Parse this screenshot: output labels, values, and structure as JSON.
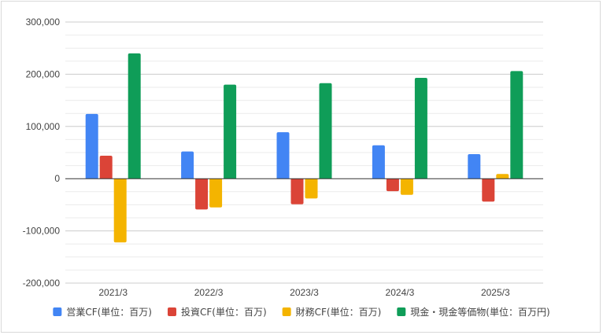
{
  "chart_data": {
    "type": "bar",
    "title": "",
    "xlabel": "",
    "ylabel": "",
    "categories": [
      "2021/3",
      "2022/3",
      "2023/3",
      "2024/3",
      "2025/3"
    ],
    "ylim": [
      -200000,
      300000
    ],
    "yticks": [
      300000,
      200000,
      100000,
      0,
      -100000,
      -200000
    ],
    "ytick_labels": [
      "300,000",
      "200,000",
      "100,000",
      "0",
      "-100,000",
      "-200,000"
    ],
    "grid": true,
    "legend_position": "bottom",
    "series": [
      {
        "name": "営業CF(単位：百万)",
        "color": "#4285f4",
        "values": [
          124000,
          52000,
          89000,
          64000,
          47000
        ]
      },
      {
        "name": "投資CF(単位：百万)",
        "color": "#db4437",
        "values": [
          44000,
          -59000,
          -49000,
          -24000,
          -44000
        ]
      },
      {
        "name": "財務CF(単位：百万)",
        "color": "#f4b400",
        "values": [
          -122000,
          -55000,
          -38000,
          -31000,
          9000
        ]
      },
      {
        "name": "現金・現金等価物(単位：百万円)",
        "color": "#0f9d58",
        "values": [
          240000,
          180000,
          183000,
          193000,
          206000
        ]
      }
    ]
  }
}
